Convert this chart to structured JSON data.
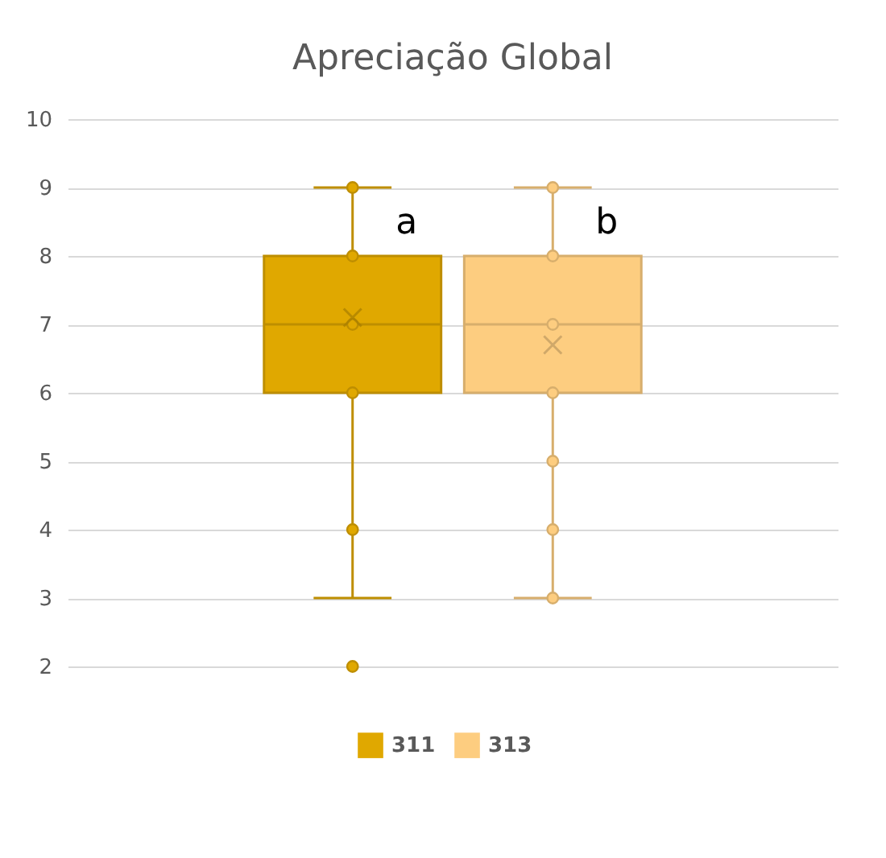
{
  "chart_data": {
    "type": "box",
    "title": "Apreciação Global",
    "categories": [
      null
    ],
    "ylim": [
      2,
      10
    ],
    "yticks": [
      2,
      3,
      4,
      5,
      6,
      7,
      8,
      9,
      10
    ],
    "grid": "y",
    "legend": "bottom",
    "marker": "circle",
    "series": [
      {
        "name": "311",
        "color": "#e0a800",
        "boxes": [
          {
            "low": 3,
            "q1": 6,
            "median": 7,
            "q3": 8,
            "high": 9,
            "mean": 7.1,
            "outliers": [
              2
            ]
          }
        ]
      },
      {
        "name": "313",
        "color": "#fdcd80",
        "boxes": [
          {
            "low": 3,
            "q1": 6,
            "median": 7,
            "q3": 8,
            "high": 9,
            "mean": 6.7
          }
        ]
      },
      {
        "type": "scatter",
        "color": "#e0a800",
        "x": [
          null,
          null,
          null,
          null,
          null
        ],
        "values": [
          4,
          6,
          7,
          8,
          9
        ]
      },
      {
        "type": "scatter",
        "color": "#fdcd80",
        "x": [
          null,
          null,
          null,
          null,
          null,
          null,
          null
        ],
        "values": [
          3,
          4,
          5,
          6,
          7,
          8,
          9
        ]
      }
    ],
    "annotations": [
      "a",
      "b"
    ]
  }
}
